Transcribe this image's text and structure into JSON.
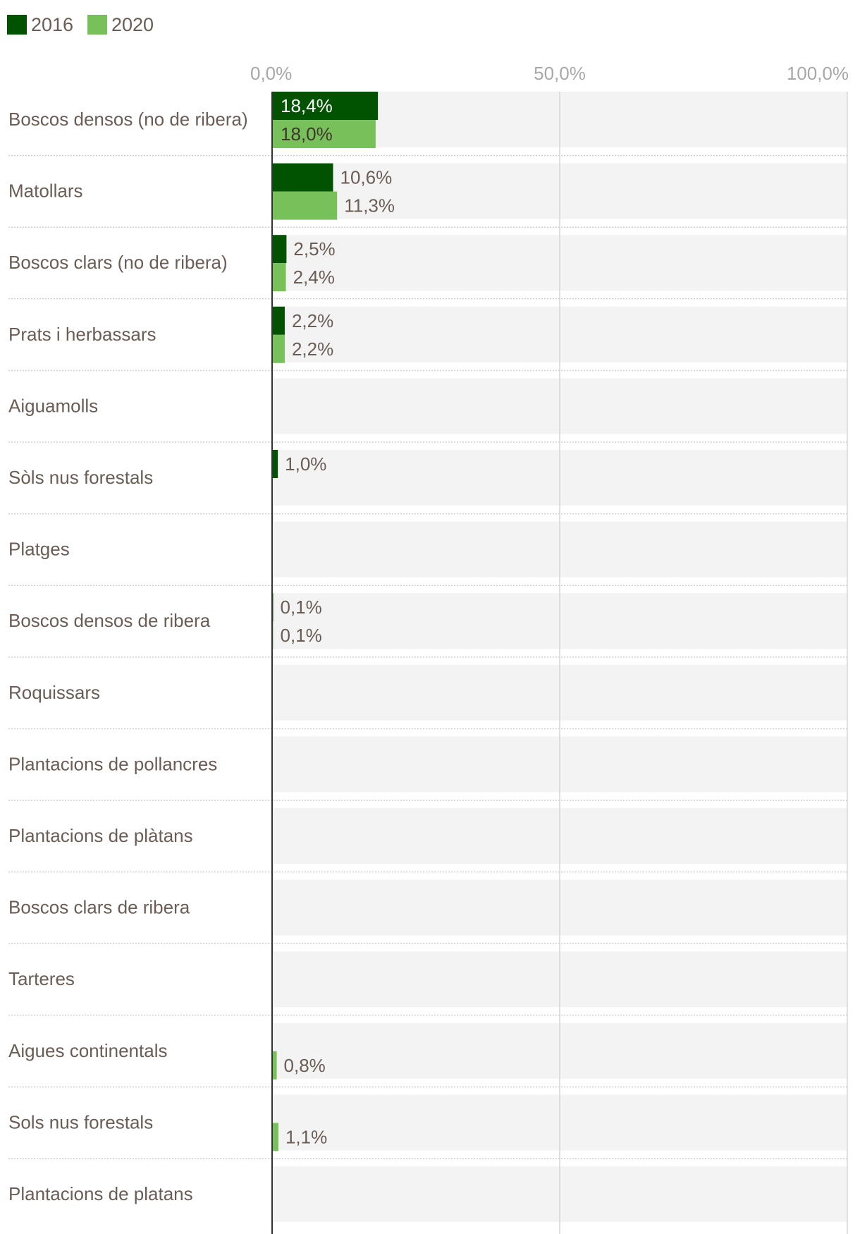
{
  "chart_data": {
    "type": "bar",
    "orientation": "horizontal",
    "title": "",
    "xlabel": "",
    "ylabel": "",
    "xlim": [
      0,
      100
    ],
    "x_ticks": [
      "0,0%",
      "50,0%",
      "100,0%"
    ],
    "x_tick_values": [
      0,
      50,
      100
    ],
    "grid": true,
    "legend_position": "top-left",
    "categories": [
      "Boscos densos (no de ribera)",
      "Matollars",
      "Boscos clars (no de ribera)",
      "Prats i herbassars",
      "Aiguamolls",
      "Sòls nus forestals",
      "Platges",
      "Boscos densos de ribera",
      "Roquissars",
      "Plantacions de pollancres",
      "Plantacions de plàtans",
      "Boscos clars de ribera",
      "Tarteres",
      "Aigues continentals",
      "Sols nus forestals",
      "Plantacions de platans"
    ],
    "series": [
      {
        "name": "2016",
        "color": "#015201",
        "values": [
          18.4,
          10.6,
          2.5,
          2.2,
          null,
          1.0,
          null,
          0.1,
          null,
          null,
          null,
          null,
          null,
          null,
          null,
          null
        ],
        "labels": [
          "18,4%",
          "10,6%",
          "2,5%",
          "2,2%",
          null,
          "1,0%",
          null,
          "0,1%",
          null,
          null,
          null,
          null,
          null,
          null,
          null,
          null
        ]
      },
      {
        "name": "2020",
        "color": "#78c05a",
        "values": [
          18.0,
          11.3,
          2.4,
          2.2,
          null,
          null,
          null,
          0.1,
          null,
          null,
          null,
          null,
          null,
          0.8,
          1.1,
          null
        ],
        "labels": [
          "18,0%",
          "11,3%",
          "2,4%",
          "2,2%",
          null,
          null,
          null,
          "0,1%",
          null,
          null,
          null,
          null,
          null,
          "0,8%",
          "1,1%",
          null
        ]
      }
    ]
  }
}
